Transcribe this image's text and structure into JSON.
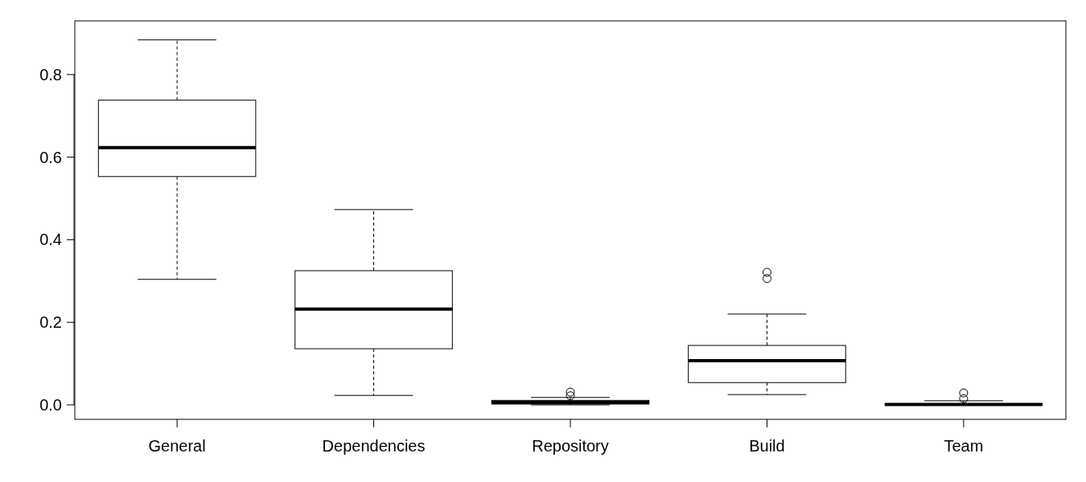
{
  "chart_data": {
    "type": "box",
    "categories": [
      "General",
      "Dependencies",
      "Repository",
      "Build",
      "Team"
    ],
    "boxes": [
      {
        "low": 0.304,
        "q1": 0.553,
        "median": 0.623,
        "q3": 0.738,
        "high": 0.884
      },
      {
        "low": 0.023,
        "q1": 0.136,
        "median": 0.232,
        "q3": 0.325,
        "high": 0.473
      },
      {
        "low": 0,
        "q1": 0.002,
        "median": 0.006,
        "q3": 0.011,
        "high": 0.018,
        "outliers": [
          0.031,
          0.022
        ]
      },
      {
        "low": 0.025,
        "q1": 0.054,
        "median": 0.107,
        "q3": 0.144,
        "high": 0.22,
        "outliers": [
          0.321,
          0.306
        ]
      },
      {
        "low": 0,
        "q1": 0,
        "median": 0.001,
        "q3": 0.003,
        "high": 0.01,
        "outliers": [
          0.029,
          0.015
        ]
      }
    ],
    "ylim": [
      -0.035,
      0.93
    ],
    "yticks": [
      {
        "value": 0,
        "label": "0.0"
      },
      0.2,
      0.4,
      0.6,
      0.8
    ],
    "marker": "circle",
    "line_style": "dashed"
  }
}
